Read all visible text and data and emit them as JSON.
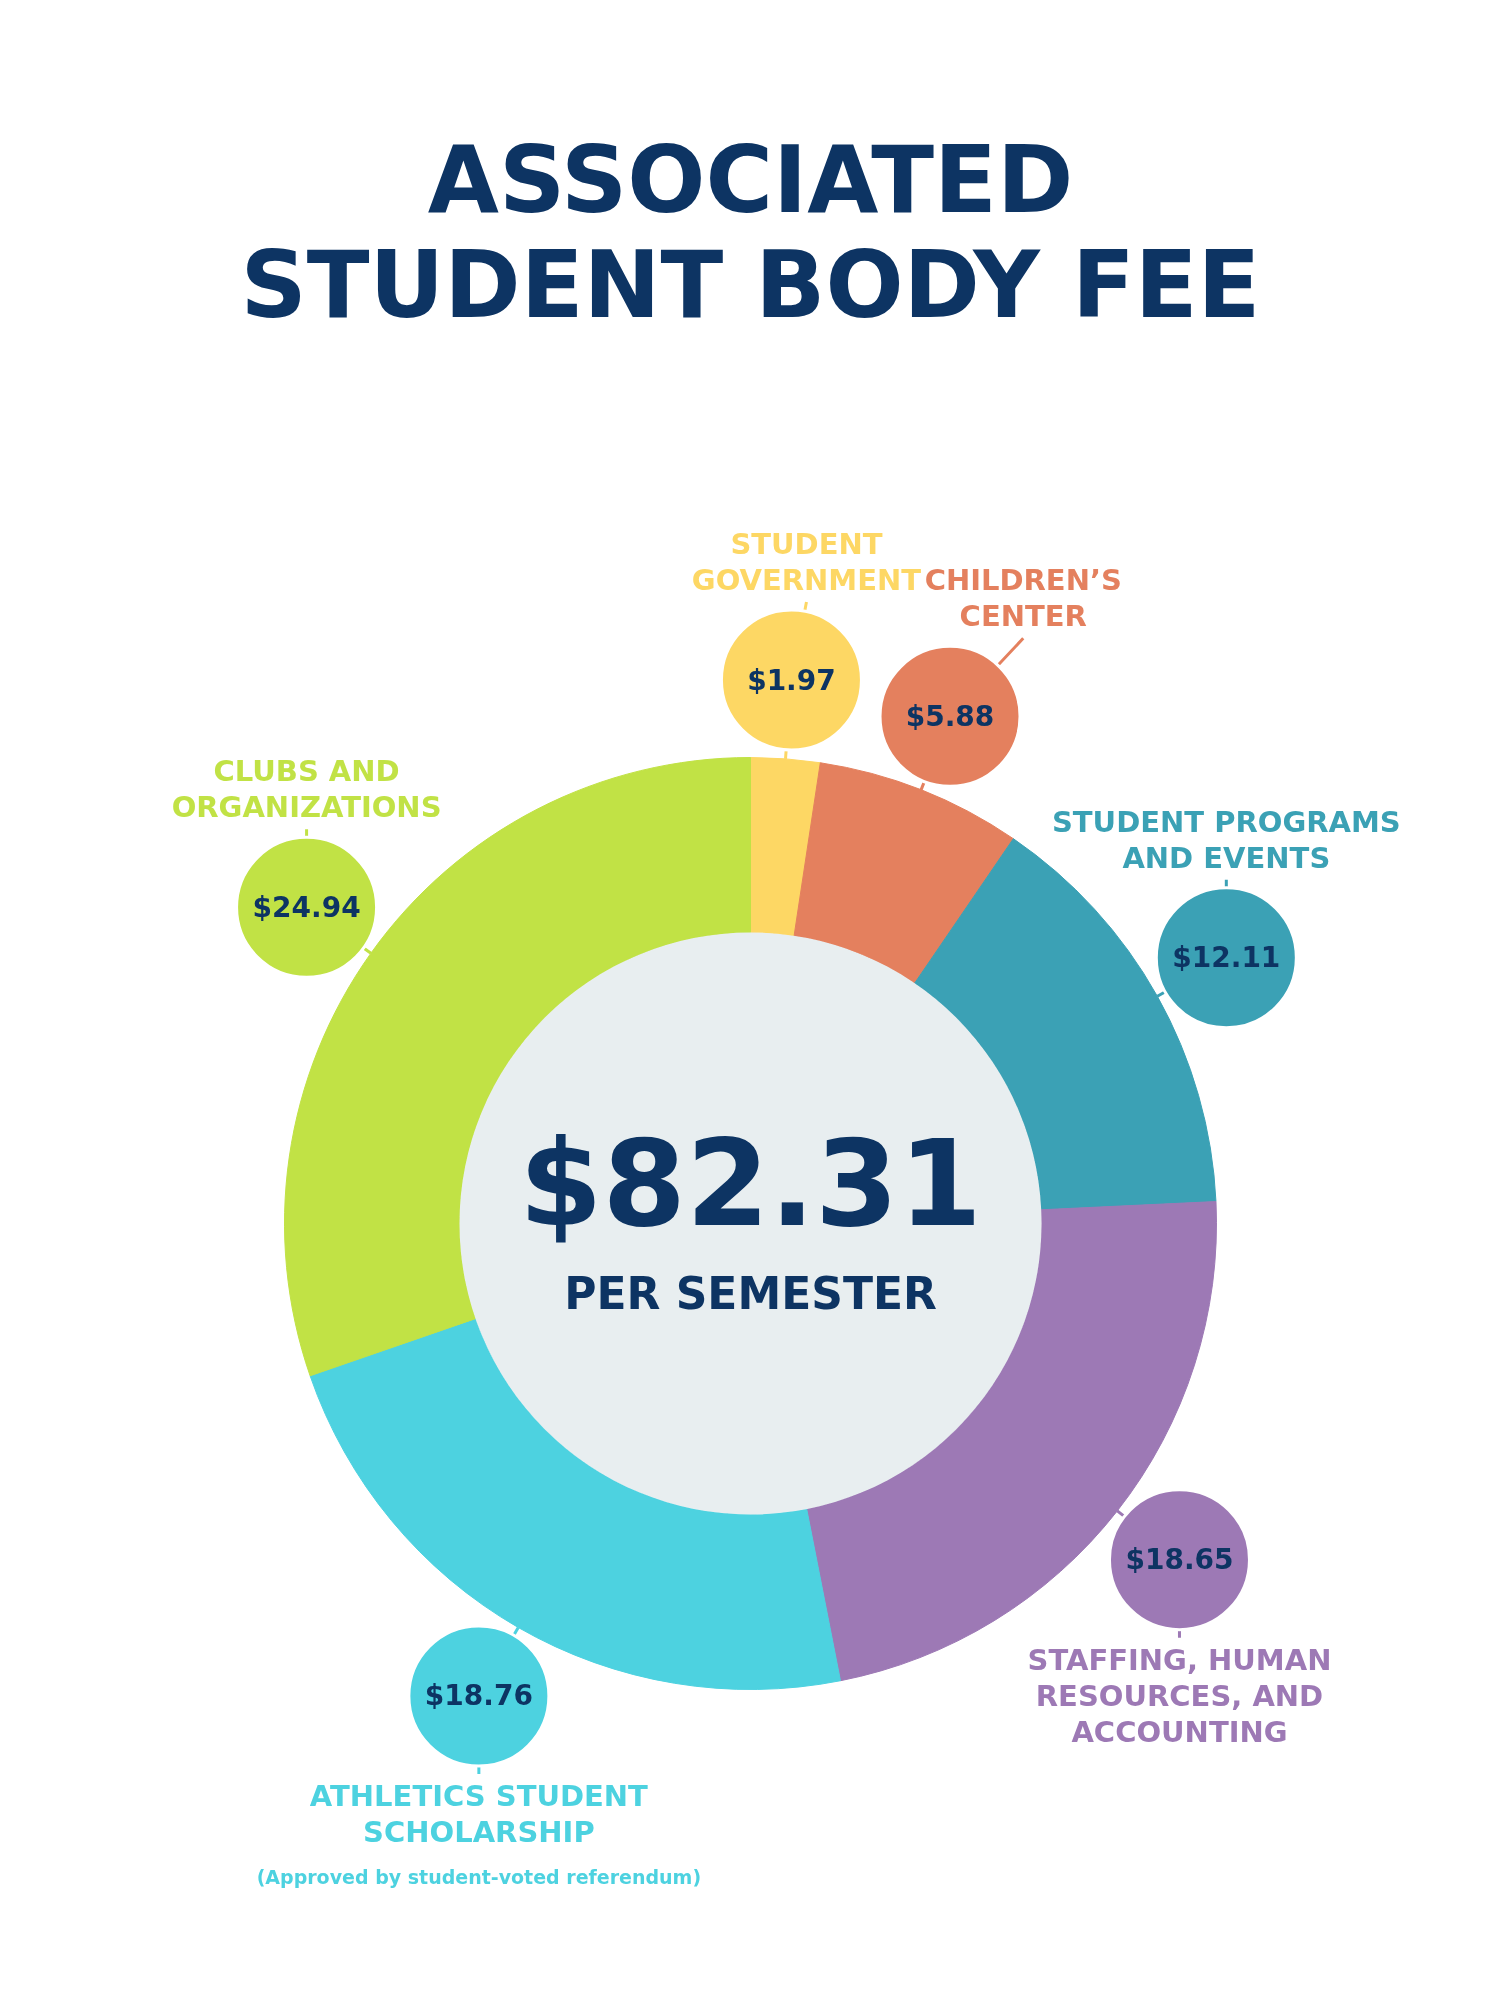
{
  "chart_data": {
    "type": "donut",
    "title": "ASSOCIATED STUDENT BODY FEE",
    "categories": [
      "STUDENT GOVERNMENT",
      "CHILDREN’S CENTER",
      "STUDENT PROGRAMS AND EVENTS",
      "STAFFING, HUMAN RESOURCES, AND ACCOUNTING",
      "ATHLETICS STUDENT SCHOLARSHIP",
      "CLUBS AND ORGANIZATIONS"
    ],
    "values": [
      1.97,
      5.88,
      12.11,
      18.65,
      18.76,
      24.94
    ],
    "colors": [
      "#fdd764",
      "#e4805e",
      "#3ba1b5",
      "#9d79b5",
      "#4dd2e0",
      "#c1e245"
    ],
    "value_labels": [
      "$1.97",
      "$5.88",
      "$12.11",
      "$18.65",
      "$18.76",
      "$24.94"
    ],
    "annotations": [
      "$82.31",
      "PER SEMESTER",
      "(Approved by student-voted referendum)"
    ],
    "legend": false
  }
}
